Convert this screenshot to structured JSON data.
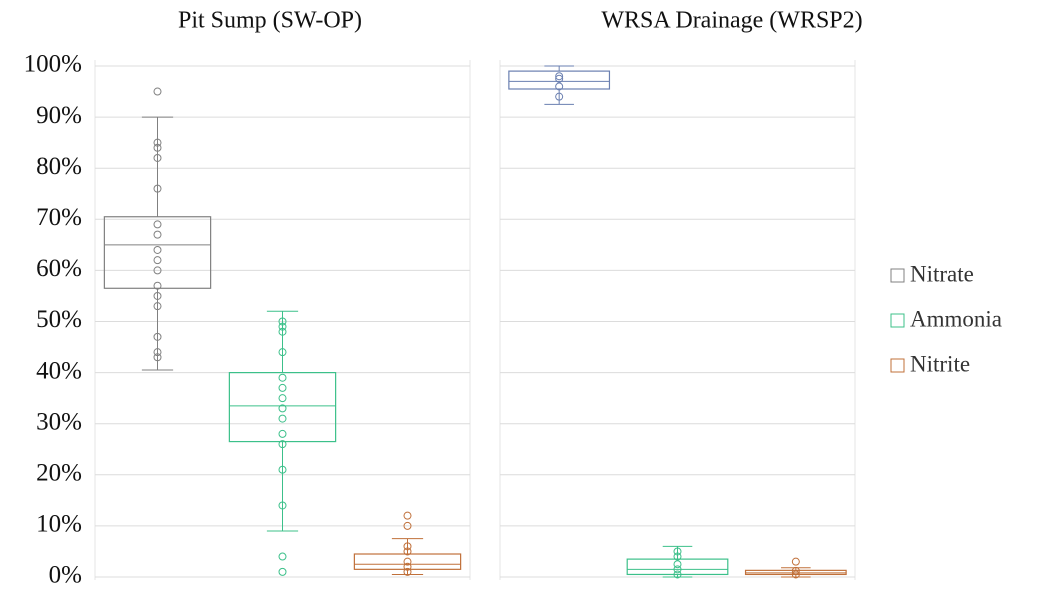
{
  "chart_data": [
    {
      "type": "box",
      "title": "Pit Sump (SW-OP)",
      "ylim": [
        0,
        100
      ],
      "yticks": [
        {
          "value": 0,
          "label": "0%"
        },
        {
          "value": 10,
          "label": "10%"
        },
        {
          "value": 20,
          "label": "20%"
        },
        {
          "value": 30,
          "label": "30%"
        },
        {
          "value": 40,
          "label": "40%"
        },
        {
          "value": 50,
          "label": "50%"
        },
        {
          "value": 60,
          "label": "60%"
        },
        {
          "value": 70,
          "label": "70%"
        },
        {
          "value": 80,
          "label": "80%"
        },
        {
          "value": 90,
          "label": "90%"
        },
        {
          "value": 100,
          "label": "100%"
        }
      ],
      "grid": true,
      "series": [
        {
          "name": "Nitrate",
          "color": "#808080",
          "min": 40.5,
          "q1": 56.5,
          "median": 65,
          "q3": 70.5,
          "max": 90,
          "points": [
            95,
            85,
            84,
            82,
            76,
            69,
            67,
            64,
            62,
            60,
            57,
            55,
            53,
            47,
            44,
            43
          ]
        },
        {
          "name": "Ammonia",
          "color": "#3cc08a",
          "min": 9,
          "q1": 26.5,
          "median": 33.5,
          "q3": 40,
          "max": 52,
          "points": [
            50,
            49,
            48,
            44,
            39,
            37,
            35,
            33,
            31,
            28,
            26,
            21,
            14,
            4,
            1
          ]
        },
        {
          "name": "Nitrite",
          "color": "#c0703a",
          "min": 0.5,
          "q1": 1.5,
          "median": 2.5,
          "q3": 4.5,
          "max": 7.5,
          "points": [
            12,
            10,
            6,
            5,
            3,
            2,
            1
          ]
        }
      ]
    },
    {
      "type": "box",
      "title": "WRSA Drainage (WRSP2)",
      "ylim": [
        0,
        100
      ],
      "grid": true,
      "series": [
        {
          "color": "#6a7fb0",
          "min": 92.5,
          "q1": 95.5,
          "median": 97,
          "q3": 99,
          "max": 100,
          "points": [
            98,
            97.5,
            96,
            94
          ]
        },
        {
          "color": "#3cc08a",
          "min": 0,
          "q1": 0.5,
          "median": 1.5,
          "q3": 3.5,
          "max": 6,
          "points": [
            5,
            4,
            2.5,
            1.5,
            0.5
          ]
        },
        {
          "color": "#c0703a",
          "min": 0,
          "q1": 0.5,
          "median": 0.8,
          "q3": 1.3,
          "max": 1.8,
          "points": [
            3,
            1.2,
            0.5
          ]
        }
      ]
    }
  ]
}
